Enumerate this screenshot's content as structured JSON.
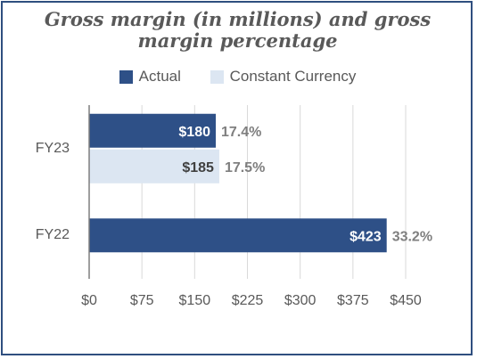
{
  "chart_data": {
    "type": "bar",
    "orientation": "horizontal",
    "title": "Gross margin (in millions) and gross margin percentage",
    "title_lines": [
      "Gross margin (in millions) and gross",
      "margin percentage"
    ],
    "categories": [
      "FY23",
      "FY22"
    ],
    "series": [
      {
        "name": "Actual",
        "color": "#2e5087",
        "values": [
          180,
          423
        ],
        "labels": [
          "$180",
          "$423"
        ],
        "annotations": [
          "17.4%",
          "33.2%"
        ]
      },
      {
        "name": "Constant Currency",
        "color": "#dce6f2",
        "values": [
          185,
          null
        ],
        "labels": [
          "$185",
          null
        ],
        "annotations": [
          "17.5%",
          null
        ]
      }
    ],
    "xlim": [
      0,
      450
    ],
    "xticks": [
      0,
      75,
      150,
      225,
      300,
      375,
      450
    ],
    "xtick_labels": [
      "$0",
      "$75",
      "$150",
      "$225",
      "$300",
      "$375",
      "$450"
    ],
    "grid": true,
    "legend_position": "top"
  }
}
